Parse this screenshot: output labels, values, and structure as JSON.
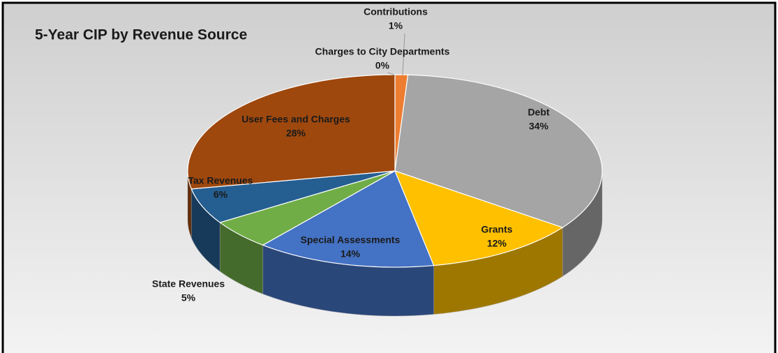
{
  "chart_data": {
    "type": "pie3d",
    "title": "5-Year CIP by Revenue Source",
    "categories": [
      "Charges to City Departments",
      "Contributions",
      "Debt",
      "Grants",
      "Special Assessments",
      "State Revenues",
      "Tax Revenues",
      "User Fees and Charges"
    ],
    "values": [
      0,
      1,
      34,
      12,
      14,
      5,
      6,
      28
    ],
    "value_labels": [
      "0%",
      "1%",
      "34%",
      "12%",
      "14%",
      "5%",
      "6%",
      "28%"
    ],
    "colors": [
      "#5B9BD5",
      "#ED7D31",
      "#A5A5A5",
      "#FFC000",
      "#4472C4",
      "#70AD47",
      "#255E91",
      "#9E480E"
    ]
  }
}
